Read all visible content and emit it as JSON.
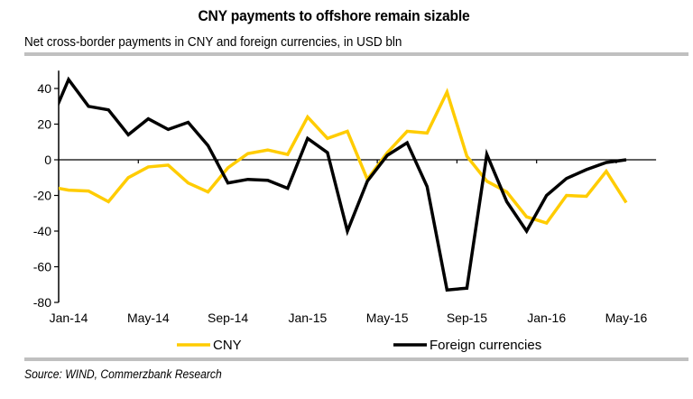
{
  "title": "CNY payments to offshore remain sizable",
  "subtitle": "Net cross-border payments in CNY and foreign currencies, in USD bln",
  "source": "Source: WIND, Commerzbank Research",
  "colors": {
    "cny": "#FFCC00",
    "foreign": "#000000",
    "rule": "#C0C0C0"
  },
  "chart_data": {
    "type": "line",
    "title": "CNY payments to offshore remain sizable",
    "xlabel": "",
    "ylabel": "",
    "ylim": [
      -80,
      50
    ],
    "yticks": [
      -80,
      -60,
      -40,
      -20,
      0,
      20,
      40
    ],
    "ytick_labels": [
      "-80",
      "-60",
      "-40",
      "-20",
      "0",
      "20",
      "40"
    ],
    "x": [
      "Dec-13",
      "Jan-14",
      "Feb-14",
      "Mar-14",
      "Apr-14",
      "May-14",
      "Jun-14",
      "Jul-14",
      "Aug-14",
      "Sep-14",
      "Oct-14",
      "Nov-14",
      "Dec-14",
      "Jan-15",
      "Feb-15",
      "Mar-15",
      "Apr-15",
      "May-15",
      "Jun-15",
      "Jul-15",
      "Aug-15",
      "Sep-15",
      "Oct-15",
      "Nov-15",
      "Dec-15",
      "Jan-16",
      "Feb-16",
      "Mar-16",
      "Apr-16",
      "May-16",
      "Jun-16"
    ],
    "xtick_labels": [
      "Jan-14",
      "May-14",
      "Sep-14",
      "Jan-15",
      "May-15",
      "Sep-15",
      "Jan-16",
      "May-16"
    ],
    "grid": false,
    "legend": "bottom",
    "series": [
      {
        "name": "CNY",
        "key": "cny",
        "values": [
          -15,
          -17,
          -17.5,
          -23.5,
          -10,
          -4,
          -3,
          -13,
          -18,
          -4.5,
          3.5,
          5.5,
          3,
          24,
          12,
          16,
          -11,
          4,
          16,
          15,
          38,
          2,
          -12,
          -18,
          -32,
          -35.5,
          -20,
          -20.5,
          -6.5,
          -24,
          null
        ]
      },
      {
        "name": "Foreign currencies",
        "key": "foreign",
        "values": [
          19,
          45,
          30,
          28,
          14,
          23,
          17,
          21,
          8,
          -13,
          -11,
          -11.5,
          -16,
          12,
          4,
          -40,
          -12,
          2.5,
          9.5,
          -15,
          -73,
          -72,
          3,
          -23.5,
          -40,
          -20,
          -10.5,
          -5.5,
          -1.5,
          0,
          null
        ]
      }
    ]
  }
}
